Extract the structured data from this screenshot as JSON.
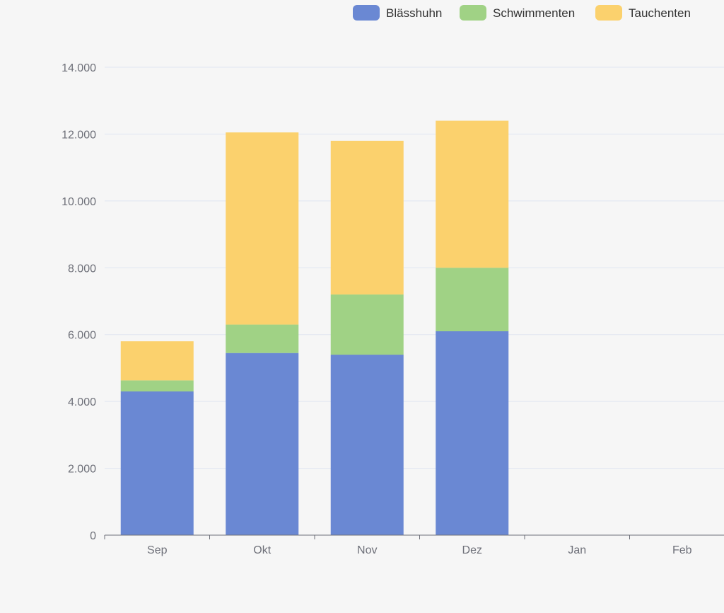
{
  "chart_data": {
    "type": "bar",
    "stacked": true,
    "categories": [
      "Sep",
      "Okt",
      "Nov",
      "Dez",
      "Jan",
      "Feb"
    ],
    "series": [
      {
        "name": "Blässhuhn",
        "color": "#6a88d3",
        "values": [
          4300,
          5450,
          5400,
          6100,
          0,
          0
        ]
      },
      {
        "name": "Schwimmenten",
        "color": "#a0d285",
        "values": [
          330,
          850,
          1800,
          1900,
          0,
          0
        ]
      },
      {
        "name": "Tauchenten",
        "color": "#fbd16d",
        "values": [
          1170,
          5750,
          4600,
          4400,
          0,
          0
        ]
      }
    ],
    "ylim": [
      0,
      14000
    ],
    "y_ticks": [
      0,
      2000,
      4000,
      6000,
      8000,
      10000,
      12000,
      14000
    ],
    "y_tick_labels": [
      "0",
      "2.000",
      "4.000",
      "6.000",
      "8.000",
      "10.000",
      "12.000",
      "14.000"
    ],
    "grid": true,
    "legend_position": "top-right",
    "title": "",
    "xlabel": "",
    "ylabel": ""
  }
}
